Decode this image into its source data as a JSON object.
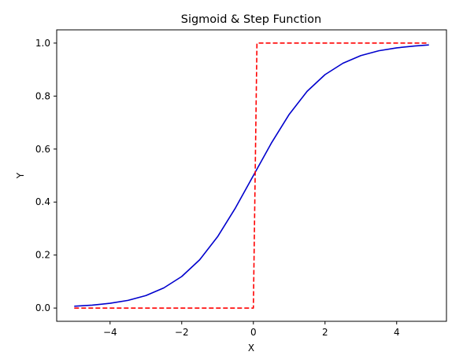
{
  "chart_data": {
    "type": "line",
    "title": "Sigmoid & Step Function",
    "xlabel": "X",
    "ylabel": "Y",
    "xlim": [
      -5.49,
      5.39
    ],
    "ylim": [
      -0.05,
      1.05
    ],
    "xticks": [
      -4,
      -2,
      0,
      2,
      4
    ],
    "yticks": [
      0.0,
      0.2,
      0.4,
      0.6,
      0.8,
      1.0
    ],
    "xtick_labels": [
      "−4",
      "−2",
      "0",
      "2",
      "4"
    ],
    "ytick_labels": [
      "0.0",
      "0.2",
      "0.4",
      "0.6",
      "0.8",
      "1.0"
    ],
    "grid": false,
    "series": [
      {
        "color": "#0000cd",
        "style": "solid",
        "x": [
          -5.0,
          -4.5,
          -4.0,
          -3.5,
          -3.0,
          -2.5,
          -2.0,
          -1.5,
          -1.0,
          -0.5,
          0.0,
          0.5,
          1.0,
          1.5,
          2.0,
          2.5,
          3.0,
          3.5,
          4.0,
          4.5,
          4.9
        ],
        "y": [
          0.007,
          0.011,
          0.018,
          0.029,
          0.047,
          0.076,
          0.119,
          0.182,
          0.269,
          0.378,
          0.5,
          0.622,
          0.731,
          0.818,
          0.881,
          0.924,
          0.953,
          0.971,
          0.982,
          0.989,
          0.993
        ]
      },
      {
        "color": "#ff0000",
        "style": "dashed",
        "x": [
          -5.0,
          0.0,
          0.1,
          4.9
        ],
        "y": [
          0.0,
          0.0,
          1.0,
          1.0
        ]
      }
    ]
  }
}
